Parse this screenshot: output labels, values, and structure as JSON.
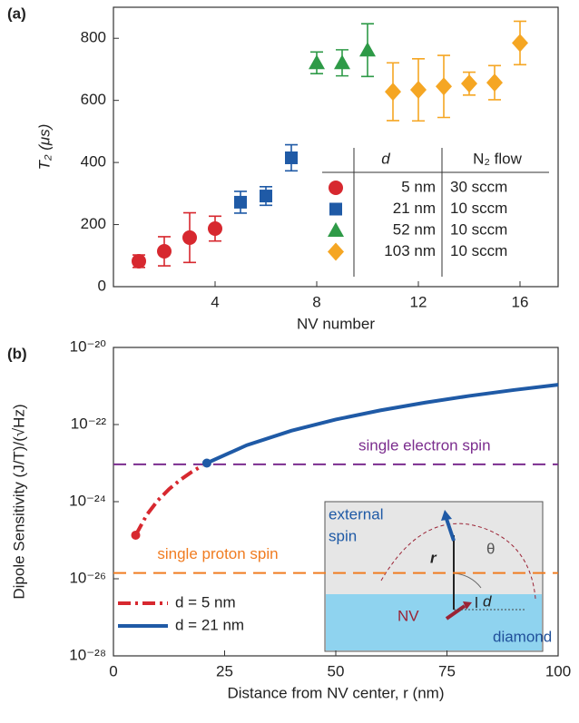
{
  "chart_data": [
    {
      "type": "scatter",
      "panel_label": "(a)",
      "y_label": "T₂ (μs)",
      "x_label": "NV number",
      "xlim": [
        0,
        17.5
      ],
      "ylim": [
        0,
        900
      ],
      "xticks": [
        4,
        8,
        12,
        16
      ],
      "yticks": [
        0,
        200,
        400,
        600,
        800
      ],
      "legend_header": [
        "d",
        "N₂ flow"
      ],
      "series": [
        {
          "name": "5 nm",
          "flow": "30 sccm",
          "color": "#d7282f",
          "marker": "circle",
          "x": [
            1,
            2,
            3,
            4
          ],
          "values": [
            82,
            114,
            158,
            187
          ],
          "errors": [
            20,
            47,
            80,
            40
          ]
        },
        {
          "name": "21 nm",
          "flow": "10 sccm",
          "color": "#1f5aa6",
          "marker": "square",
          "x": [
            5,
            6,
            7
          ],
          "values": [
            272,
            292,
            415
          ],
          "errors": [
            35,
            30,
            42
          ]
        },
        {
          "name": "52 nm",
          "flow": "10 sccm",
          "color": "#2e9a47",
          "marker": "triangle",
          "x": [
            8,
            9,
            10
          ],
          "values": [
            721,
            721,
            762
          ],
          "errors": [
            35,
            42,
            85
          ]
        },
        {
          "name": "103 nm",
          "flow": "10 sccm",
          "color": "#f5a623",
          "marker": "diamond",
          "x": [
            11,
            12,
            13,
            14,
            15,
            16
          ],
          "values": [
            628,
            634,
            645,
            654,
            657,
            785
          ],
          "errors": [
            93,
            100,
            100,
            37,
            55,
            70
          ]
        }
      ]
    },
    {
      "type": "line",
      "panel_label": "(b)",
      "y_label": "Dipole Sensitivity (J/T)/(√Hz)",
      "x_label": "Distance from NV center, r (nm)",
      "log_y": true,
      "xlim": [
        0,
        100
      ],
      "ylim": [
        1e-28,
        1e-20
      ],
      "xticks": [
        0,
        25,
        50,
        75,
        100
      ],
      "yticks": [
        {
          "value": 1e-28,
          "label": "10⁻²⁸"
        },
        {
          "value": 1e-26,
          "label": "10⁻²⁶"
        },
        {
          "value": 1e-24,
          "label": "10⁻²⁴"
        },
        {
          "value": 1e-22,
          "label": "10⁻²²"
        },
        {
          "value": 1e-20,
          "label": "10⁻²⁰"
        }
      ],
      "series": [
        {
          "name": "d = 5 nm",
          "color": "#d7282f",
          "dash": "dashdot",
          "x": [
            5,
            7.5,
            10,
            12.5,
            15,
            17.5,
            20
          ],
          "values": [
            1.35e-25,
            4.56e-25,
            1.08e-24,
            2.11e-24,
            3.65e-24,
            5.79e-24,
            8.64e-24
          ]
        },
        {
          "name": "d = 21 nm",
          "color": "#1f5aa6",
          "dash": "solid",
          "x": [
            21,
            30,
            40,
            50,
            60,
            70,
            80,
            90,
            100
          ],
          "values": [
            1e-23,
            2.92e-23,
            6.91e-23,
            1.35e-22,
            2.33e-22,
            3.7e-22,
            5.53e-22,
            7.87e-22,
            1.08e-21
          ]
        }
      ],
      "reference_lines": [
        {
          "name": "single electron spin",
          "value": 9.27e-24,
          "color": "#7b2d8e"
        },
        {
          "name": "single proton spin",
          "value": 1.41e-26,
          "color": "#f07c21"
        }
      ],
      "inset_labels": [
        "external",
        "spin",
        "r",
        "θ",
        "NV",
        "d",
        "diamond"
      ]
    }
  ]
}
